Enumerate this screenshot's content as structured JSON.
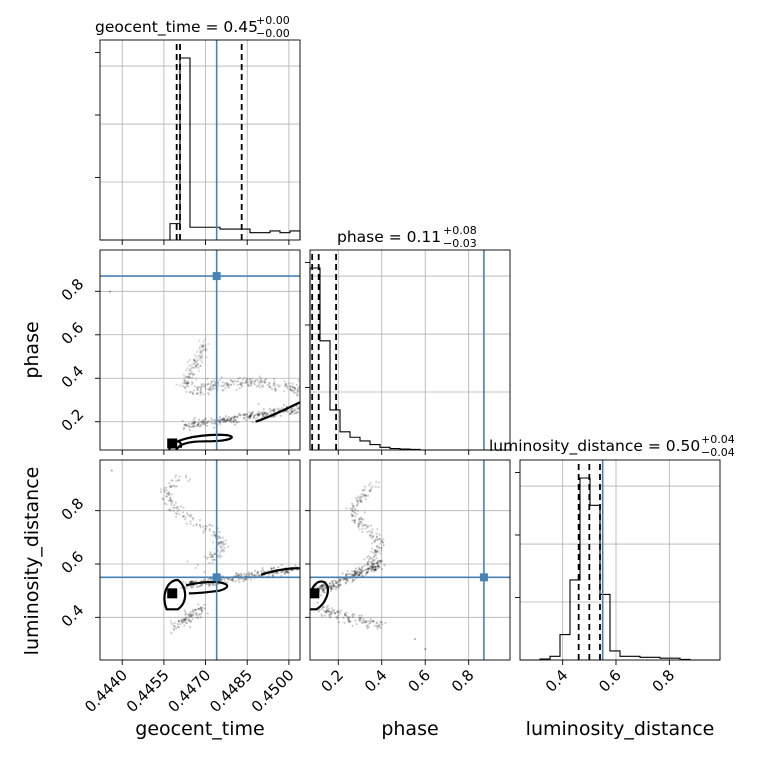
{
  "chart_data": {
    "type": "corner",
    "parameters": [
      "geocent_time",
      "phase",
      "luminosity_distance"
    ],
    "axis_labels": [
      "geocent_time",
      "phase",
      "luminosity_distance"
    ],
    "ranges": {
      "geocent_time": [
        0.4432,
        0.4504
      ],
      "phase": [
        0.07,
        0.99
      ],
      "luminosity_distance": [
        0.24,
        0.99
      ]
    },
    "truths": {
      "geocent_time": 0.4474,
      "phase": 0.87,
      "luminosity_distance": 0.55
    },
    "titles": [
      {
        "param": "geocent_time",
        "text": "geocent_time = 0.45",
        "sup": "+0.00",
        "sub": "−0.00"
      },
      {
        "param": "phase",
        "text": "phase = 0.11",
        "sup": "+0.08",
        "sub": "−0.03"
      },
      {
        "param": "luminosity_distance",
        "text": "luminosity_distance = 0.50",
        "sup": "+0.04",
        "sub": "−0.04"
      }
    ],
    "ticks": {
      "geocent_time": {
        "values": [
          0.444,
          0.4455,
          0.447,
          0.4485,
          0.45
        ],
        "labels": [
          "0.4440",
          "0.4455",
          "0.4470",
          "0.4485",
          "0.4500"
        ]
      },
      "phase": {
        "values": [
          0.2,
          0.4,
          0.6,
          0.8
        ],
        "labels": [
          "0.2",
          "0.4",
          "0.6",
          "0.8"
        ]
      },
      "luminosity_distance": {
        "values": [
          0.4,
          0.6,
          0.8
        ],
        "labels": [
          "0.4",
          "0.6",
          "0.8"
        ]
      },
      "luminosity_distance_y": {
        "values": [
          0.4,
          0.6,
          0.8
        ],
        "labels": [
          "0.4",
          "0.6",
          "0.8"
        ]
      },
      "phase_y": {
        "values": [
          0.2,
          0.4,
          0.6,
          0.8
        ],
        "labels": [
          "0.2",
          "0.4",
          "0.6",
          "0.8"
        ]
      }
    },
    "marginals": {
      "geocent_time": {
        "bins": [
          0.4432,
          0.44356,
          0.44392,
          0.44428,
          0.44464,
          0.445,
          0.44536,
          0.44572,
          0.44608,
          0.44644,
          0.4468,
          0.44716,
          0.44752,
          0.44788,
          0.44824,
          0.4486,
          0.44896,
          0.44932,
          0.44968,
          0.45004,
          0.4504
        ],
        "density": [
          0,
          0,
          0,
          0,
          0,
          0,
          0,
          0.09,
          1.0,
          0.07,
          0.07,
          0.07,
          0.06,
          0.06,
          0.06,
          0.04,
          0.04,
          0.05,
          0.04,
          0.05
        ],
        "quantiles": [
          0.44596,
          0.44608,
          0.4483
        ]
      },
      "phase": {
        "bins": [
          0.07,
          0.116,
          0.162,
          0.208,
          0.254,
          0.3,
          0.346,
          0.392,
          0.438,
          0.484,
          0.53,
          0.576,
          0.622,
          0.668,
          0.714,
          0.76,
          0.806,
          0.852,
          0.898,
          0.944,
          0.99
        ],
        "density": [
          1.0,
          0.6,
          0.22,
          0.1,
          0.07,
          0.05,
          0.03,
          0.015,
          0.008,
          0.005,
          0.003,
          0,
          0,
          0,
          0,
          0,
          0,
          0,
          0,
          0
        ],
        "quantiles": [
          0.08,
          0.11,
          0.19
        ]
      },
      "luminosity_distance": {
        "bins": [
          0.24,
          0.2775,
          0.315,
          0.3525,
          0.39,
          0.4275,
          0.465,
          0.5025,
          0.54,
          0.5775,
          0.615,
          0.6525,
          0.69,
          0.7275,
          0.765,
          0.8025,
          0.84,
          0.8775,
          0.915,
          0.9525,
          0.99
        ],
        "density": [
          0,
          0,
          0.005,
          0.02,
          0.14,
          0.44,
          1.0,
          0.85,
          0.36,
          0.05,
          0.02,
          0.02,
          0.015,
          0.015,
          0.01,
          0.01,
          0.003,
          0,
          0,
          0
        ],
        "quantiles": [
          0.46,
          0.5,
          0.54
        ]
      }
    },
    "joint_peaks": {
      "phase_vs_geocent_time": {
        "x": 0.4458,
        "y": 0.1
      },
      "luminosity_distance_vs_geocent_time": {
        "x": 0.4458,
        "y": 0.49
      },
      "luminosity_distance_vs_phase": {
        "x": 0.09,
        "y": 0.49
      }
    }
  }
}
